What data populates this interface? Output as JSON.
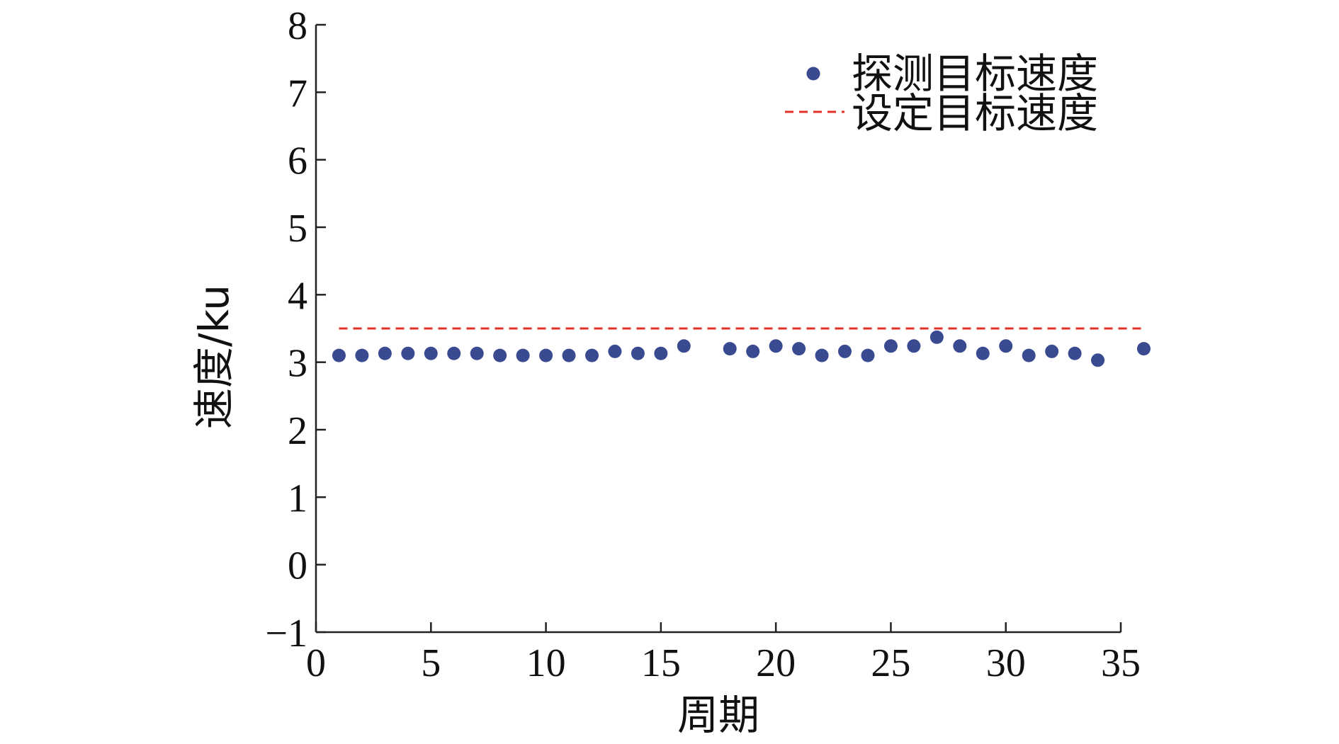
{
  "chart_data": {
    "type": "scatter",
    "xlabel": "周期",
    "ylabel": "速度/ku",
    "xlim": [
      0,
      35
    ],
    "ylim": [
      -1,
      8
    ],
    "xticks": [
      0,
      5,
      10,
      15,
      20,
      25,
      30,
      35
    ],
    "yticks": [
      -1,
      0,
      1,
      2,
      3,
      4,
      5,
      6,
      7,
      8
    ],
    "xtick_labels": [
      "0",
      "5",
      "10",
      "15",
      "20",
      "25",
      "30",
      "35"
    ],
    "ytick_labels": [
      "−1",
      "0",
      "1",
      "2",
      "3",
      "4",
      "5",
      "6",
      "7",
      "8"
    ],
    "grid": false,
    "legend_position": "top-right",
    "series": [
      {
        "name": "探测目标速度",
        "kind": "scatter",
        "color": "#3a4a91",
        "points": [
          {
            "x": 1,
            "y": 3.1
          },
          {
            "x": 2,
            "y": 3.1
          },
          {
            "x": 3,
            "y": 3.13
          },
          {
            "x": 4,
            "y": 3.13
          },
          {
            "x": 5,
            "y": 3.13
          },
          {
            "x": 6,
            "y": 3.13
          },
          {
            "x": 7,
            "y": 3.13
          },
          {
            "x": 8,
            "y": 3.1
          },
          {
            "x": 9,
            "y": 3.1
          },
          {
            "x": 10,
            "y": 3.1
          },
          {
            "x": 11,
            "y": 3.1
          },
          {
            "x": 12,
            "y": 3.1
          },
          {
            "x": 13,
            "y": 3.16
          },
          {
            "x": 14,
            "y": 3.13
          },
          {
            "x": 15,
            "y": 3.13
          },
          {
            "x": 16,
            "y": 3.24
          },
          {
            "x": 18,
            "y": 3.2
          },
          {
            "x": 19,
            "y": 3.16
          },
          {
            "x": 20,
            "y": 3.24
          },
          {
            "x": 21,
            "y": 3.2
          },
          {
            "x": 22,
            "y": 3.1
          },
          {
            "x": 23,
            "y": 3.16
          },
          {
            "x": 24,
            "y": 3.1
          },
          {
            "x": 25,
            "y": 3.24
          },
          {
            "x": 26,
            "y": 3.24
          },
          {
            "x": 27,
            "y": 3.37
          },
          {
            "x": 28,
            "y": 3.24
          },
          {
            "x": 29,
            "y": 3.13
          },
          {
            "x": 30,
            "y": 3.24
          },
          {
            "x": 31,
            "y": 3.1
          },
          {
            "x": 32,
            "y": 3.16
          },
          {
            "x": 33,
            "y": 3.13
          },
          {
            "x": 34,
            "y": 3.03
          },
          {
            "x": 36,
            "y": 3.2
          }
        ]
      },
      {
        "name": "设定目标速度",
        "kind": "dashed-line",
        "color": "#e0302a",
        "points": [
          {
            "x": 1,
            "y": 3.5
          },
          {
            "x": 36,
            "y": 3.5
          }
        ]
      }
    ]
  }
}
